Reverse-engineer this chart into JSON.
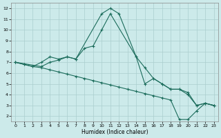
{
  "xlabel": "Humidex (Indice chaleur)",
  "xlim": [
    -0.5,
    23.5
  ],
  "ylim": [
    1.5,
    12.5
  ],
  "xticks": [
    0,
    1,
    2,
    3,
    4,
    5,
    6,
    7,
    8,
    9,
    10,
    11,
    12,
    13,
    14,
    15,
    16,
    17,
    18,
    19,
    20,
    21,
    22,
    23
  ],
  "yticks": [
    2,
    3,
    4,
    5,
    6,
    7,
    8,
    9,
    10,
    11,
    12
  ],
  "line_color": "#1a6b5a",
  "bg_color": "#cceaea",
  "grid_color": "#aacece",
  "line1_x": [
    0,
    1,
    2,
    3,
    4,
    5,
    6,
    7,
    10,
    11,
    12,
    14,
    15,
    16,
    17,
    18,
    19,
    20,
    21,
    22,
    23
  ],
  "line1_y": [
    7,
    6.8,
    6.6,
    7.0,
    7.5,
    7.3,
    7.5,
    7.3,
    11.5,
    12.0,
    11.5,
    7.5,
    6.5,
    5.5,
    5.0,
    4.5,
    4.5,
    4.0,
    3.0,
    3.2,
    3.0
  ],
  "line2_x": [
    0,
    3,
    4,
    5,
    6,
    7,
    8,
    9,
    10,
    11,
    14,
    15,
    16,
    17,
    18,
    19,
    20,
    21,
    22,
    23
  ],
  "line2_y": [
    7,
    6.6,
    7.0,
    7.2,
    7.5,
    7.3,
    8.3,
    8.5,
    10.0,
    11.5,
    7.5,
    5.0,
    5.5,
    5.0,
    4.5,
    4.5,
    4.2,
    3.0,
    3.2,
    3.0
  ],
  "line3_x": [
    0,
    1,
    2,
    3,
    4,
    5,
    6,
    7,
    8,
    9,
    10,
    11,
    12,
    13,
    14,
    15,
    16,
    17,
    18,
    19,
    20,
    21,
    22,
    23
  ],
  "line3_y": [
    7.0,
    6.8,
    6.6,
    6.5,
    6.3,
    6.1,
    5.9,
    5.7,
    5.5,
    5.3,
    5.1,
    4.9,
    4.7,
    4.5,
    4.3,
    4.1,
    3.9,
    3.7,
    3.5,
    1.7,
    1.7,
    2.5,
    3.2,
    3.0
  ]
}
